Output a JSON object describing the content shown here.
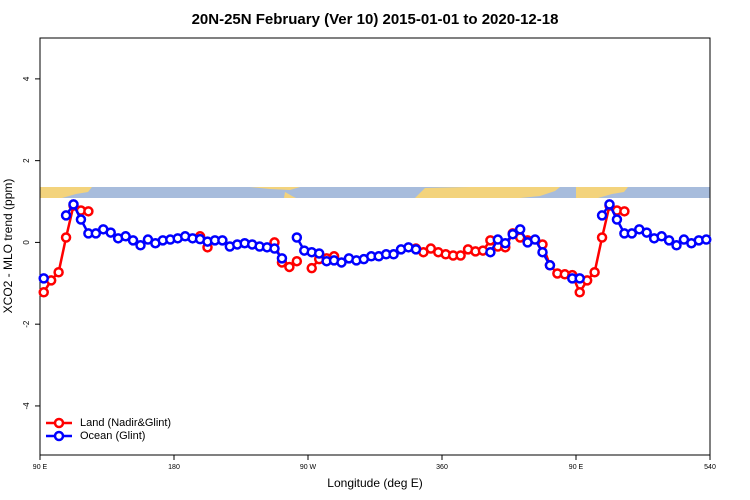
{
  "chart_data": {
    "type": "line",
    "title": "20N-25N February (Ver 10)   2015-01-01 to 2020-12-18",
    "x_label": "Longitude (deg E)",
    "y_label": "XCO2 - MLO trend (ppm)",
    "x": [
      92.5,
      97.5,
      102.5,
      107.5,
      112.5,
      117.5,
      122.5,
      127.5,
      132.5,
      137.5,
      142.5,
      147.5,
      152.5,
      157.5,
      162.5,
      167.5,
      172.5,
      177.5,
      182.5,
      187.5,
      192.5,
      197.5,
      202.5,
      207.5,
      212.5,
      217.5,
      222.5,
      227.5,
      232.5,
      237.5,
      242.5,
      247.5,
      252.5,
      257.5,
      262.5,
      267.5,
      272.5,
      277.5,
      282.5,
      287.5,
      292.5,
      297.5,
      302.5,
      307.5,
      312.5,
      317.5,
      322.5,
      327.5,
      332.5,
      337.5,
      342.5,
      347.5,
      352.5,
      357.5,
      362.5,
      367.5,
      372.5,
      377.5,
      382.5,
      387.5,
      392.5,
      397.5,
      402.5,
      407.5,
      412.5,
      417.5,
      422.5,
      427.5,
      432.5,
      437.5,
      442.5,
      447.5,
      452.5,
      457.5,
      462.5,
      467.5,
      472.5,
      477.5,
      482.5,
      487.5,
      492.5,
      497.5,
      502.5,
      507.5,
      512.5,
      517.5,
      522.5,
      527.5,
      532.5,
      537.5
    ],
    "series": [
      {
        "name": "Land (Nadir&Glint)",
        "color": "#ff0000",
        "values": [
          -1.22,
          -0.93,
          -0.73,
          0.12,
          0.9,
          0.78,
          0.76,
          null,
          null,
          null,
          null,
          null,
          null,
          null,
          null,
          null,
          null,
          null,
          null,
          null,
          null,
          0.15,
          -0.12,
          null,
          null,
          null,
          null,
          null,
          null,
          null,
          null,
          0.0,
          -0.49,
          -0.6,
          -0.46,
          null,
          -0.63,
          -0.41,
          -0.39,
          -0.34,
          null,
          null,
          null,
          null,
          null,
          null,
          null,
          null,
          null,
          null,
          -0.15,
          -0.24,
          -0.15,
          -0.24,
          -0.29,
          -0.32,
          -0.32,
          -0.17,
          -0.22,
          -0.2,
          0.05,
          -0.1,
          -0.12,
          0.22,
          0.12,
          0.05,
          null,
          -0.05,
          -0.56,
          -0.76,
          -0.78,
          -0.8,
          -1.22,
          -0.93,
          -0.73,
          0.12,
          0.9,
          0.78,
          0.76,
          null,
          null,
          null,
          null,
          null,
          null,
          null,
          null,
          null,
          null,
          null
        ]
      },
      {
        "name": "Ocean (Glint)",
        "color": "#0000ff",
        "values": [
          -0.88,
          null,
          null,
          0.66,
          0.93,
          0.56,
          0.22,
          0.22,
          0.32,
          0.24,
          0.1,
          0.15,
          0.05,
          -0.07,
          0.07,
          -0.02,
          0.05,
          0.07,
          0.1,
          0.15,
          0.1,
          0.08,
          0.02,
          0.05,
          0.05,
          -0.1,
          -0.05,
          -0.02,
          -0.05,
          -0.1,
          -0.12,
          -0.15,
          -0.39,
          null,
          0.12,
          -0.2,
          -0.24,
          -0.27,
          -0.46,
          -0.44,
          -0.49,
          -0.39,
          -0.44,
          -0.41,
          -0.34,
          -0.34,
          -0.29,
          -0.29,
          -0.17,
          -0.12,
          -0.17,
          null,
          null,
          null,
          null,
          null,
          null,
          null,
          null,
          null,
          -0.24,
          0.07,
          -0.02,
          0.2,
          0.32,
          0.0,
          0.07,
          -0.24,
          -0.56,
          null,
          null,
          -0.88,
          -0.88,
          null,
          null,
          0.66,
          0.93,
          0.56,
          0.22,
          0.22,
          0.32,
          0.24,
          0.1,
          0.15,
          0.05,
          -0.07,
          0.07,
          -0.02,
          0.05,
          0.07
        ]
      }
    ],
    "xlim": [
      90,
      540
    ],
    "xticks": [
      {
        "value": 90,
        "label": "90 E"
      },
      180,
      {
        "value": 270,
        "label": "90 W"
      },
      360,
      {
        "value": 450,
        "label": "90 E"
      },
      540
    ],
    "ylim": [
      -5.2,
      5
    ],
    "yticks": [
      -4,
      -2,
      0,
      2,
      4
    ],
    "legend": "bottom-left"
  }
}
